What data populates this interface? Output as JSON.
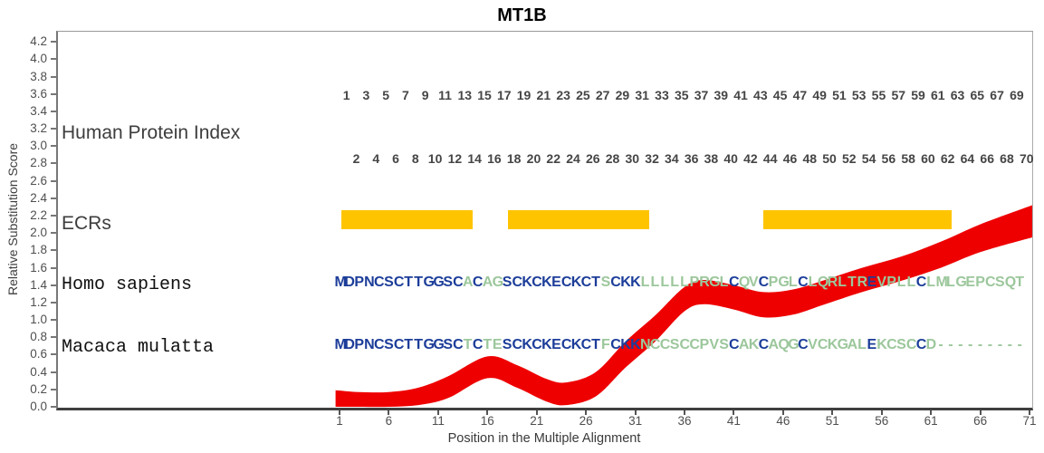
{
  "title": "MT1B",
  "row_labels": {
    "human_protein_index": "Human Protein Index",
    "ecrs": "ECRs",
    "species_1": "Homo sapiens",
    "species_2": "Macaca mulatta"
  },
  "index_numbers": {
    "odd_row": [
      1,
      3,
      5,
      7,
      9,
      11,
      13,
      15,
      17,
      19,
      21,
      23,
      25,
      27,
      29,
      31,
      33,
      35,
      37,
      39,
      41,
      43,
      45,
      47,
      49,
      51,
      53,
      55,
      57,
      59,
      61,
      63,
      65,
      67,
      69
    ],
    "even_row": [
      2,
      4,
      6,
      8,
      10,
      12,
      14,
      16,
      18,
      20,
      22,
      24,
      26,
      28,
      30,
      32,
      34,
      36,
      38,
      40,
      42,
      44,
      46,
      48,
      50,
      52,
      54,
      56,
      58,
      60,
      62,
      64,
      66,
      68,
      70
    ]
  },
  "sequences": {
    "homo_sapiens": {
      "residues": "MDPNCSCTTGGSCACAGSCKCKECKCTSCKKLLLLLPRGLCQVCPGLCLQRLTREVPLLCLMLGEPCSQT",
      "color_mask": "NNNNNNNNNNNNNGNGGNNNNNNNNNNGNNNGGGGGGGGGNGGNGGGNGGGGGGNGGGGNGGGGGGGGGG"
    },
    "macaca_mulatta": {
      "residues": "MDPNCSCTTGGSCTCTESCKCKECKCTFCKKNCCSCCPVSCAKCAQGCVCKGALEKCSCCD---------",
      "color_mask": "NNNNNNNNNNNNNGNGGNNNNNNNNNNGNNNGGGGGGGGGNGGNGGGNGGGGGGNGGGGNGGGGGGGGGG"
    }
  },
  "ecr_bars": [
    {
      "start": 1.2,
      "end": 14.5
    },
    {
      "start": 18.1,
      "end": 32.4
    },
    {
      "start": 44.0,
      "end": 63.1
    }
  ],
  "colors": {
    "band_red": "#ee0000",
    "ecr_yellow": "#ffc400",
    "conserved_navy": "#1c3d99",
    "variable_green": "#9cc79c",
    "tick_text": "#4f4f4f",
    "label_text": "#3d3d3d"
  },
  "chart_data": {
    "type": "area",
    "title": "MT1B",
    "xlabel": "Position in the Multiple Alignment",
    "ylabel": "Relative Substitution Score",
    "xlim": [
      1,
      71
    ],
    "ylim": [
      0.0,
      4.2
    ],
    "y_tick_step": 0.2,
    "x_ticks": [
      1,
      6,
      11,
      16,
      21,
      26,
      31,
      36,
      41,
      46,
      51,
      56,
      61,
      66,
      71
    ],
    "band": {
      "x": [
        0.6,
        3,
        6,
        9,
        12,
        16,
        19,
        22,
        24,
        27,
        30,
        33,
        36,
        38,
        41,
        44,
        47,
        50,
        54,
        58,
        62,
        66,
        71.4
      ],
      "low": [
        0.0,
        0.0,
        0.0,
        0.02,
        0.1,
        0.33,
        0.22,
        0.06,
        0.02,
        0.12,
        0.45,
        0.75,
        1.1,
        1.18,
        1.12,
        1.03,
        1.06,
        1.17,
        1.32,
        1.45,
        1.6,
        1.78,
        1.95
      ],
      "high": [
        0.19,
        0.17,
        0.17,
        0.22,
        0.35,
        0.58,
        0.48,
        0.32,
        0.28,
        0.4,
        0.75,
        1.05,
        1.38,
        1.46,
        1.4,
        1.32,
        1.35,
        1.45,
        1.6,
        1.73,
        1.9,
        2.1,
        2.32
      ]
    }
  }
}
